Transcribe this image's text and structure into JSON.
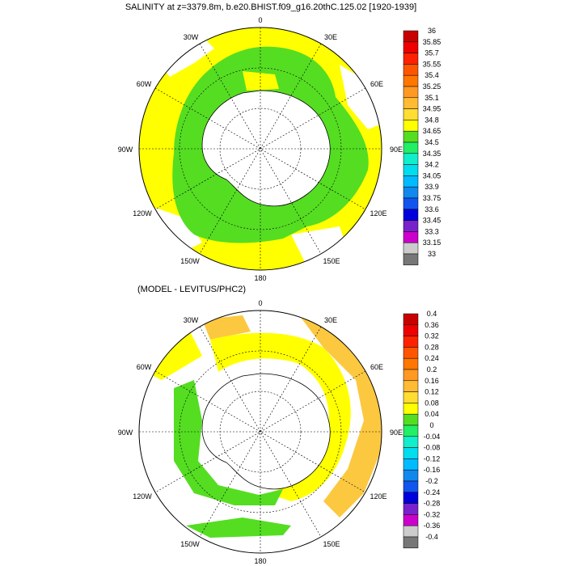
{
  "colors": {
    "green": "#55dd22",
    "yellow": "#ffff00",
    "light_orange": "#fcc840",
    "white": "#ffffff",
    "black": "#000000"
  },
  "panels": [
    {
      "id": "top",
      "title": "SALINITY at z=3379.8m, b.e20.BHIST.f09_g16.20thC.125.02 [1920-1939]",
      "lon_labels": {
        "0": "0",
        "30E": "30E",
        "60E": "60E",
        "90E": "90E",
        "120E": "120E",
        "150E": "150E",
        "180": "180",
        "150W": "150W",
        "120W": "120W",
        "90W": "90W",
        "60W": "60W",
        "30W": "30W"
      },
      "colorbar": {
        "labels": [
          "36",
          "35.85",
          "35.7",
          "35.55",
          "35.4",
          "35.25",
          "35.1",
          "34.95",
          "34.8",
          "34.65",
          "34.5",
          "34.35",
          "34.2",
          "34.05",
          "33.9",
          "33.75",
          "33.6",
          "33.45",
          "33.3",
          "33.15",
          "33"
        ],
        "colors": [
          "#c80000",
          "#ee0000",
          "#ff2200",
          "#ff5500",
          "#ff7700",
          "#ff9922",
          "#ffbb33",
          "#ffdd33",
          "#ffff00",
          "#55dd22",
          "#22ee66",
          "#11eecc",
          "#00ddee",
          "#00bbff",
          "#1188ee",
          "#1155ee",
          "#0000dd",
          "#7722cc",
          "#cc00cc",
          "#cccccc"
        ]
      }
    },
    {
      "id": "bottom",
      "title": "(MODEL - LEVITUS/PHC2)",
      "lon_labels": {
        "0": "0",
        "30E": "30E",
        "60E": "60E",
        "90E": "90E",
        "120E": "120E",
        "150E": "150E",
        "180": "180",
        "150W": "150W",
        "120W": "120W",
        "90W": "90W",
        "60W": "60W",
        "30W": "30W"
      },
      "colorbar": {
        "labels": [
          "0.4",
          "0.36",
          "0.32",
          "0.28",
          "0.24",
          "0.2",
          "0.16",
          "0.12",
          "0.08",
          "0.04",
          "0",
          "-0.04",
          "-0.08",
          "-0.12",
          "-0.16",
          "-0.2",
          "-0.24",
          "-0.28",
          "-0.32",
          "-0.36",
          "-0.4"
        ],
        "colors": [
          "#c80000",
          "#ee0000",
          "#ff2200",
          "#ff5500",
          "#ff7700",
          "#ff9922",
          "#ffbb33",
          "#ffdd33",
          "#ffff00",
          "#55dd22",
          "#22ee66",
          "#11eecc",
          "#00ddee",
          "#00bbff",
          "#1188ee",
          "#1155ee",
          "#0000dd",
          "#7722cc",
          "#cc00cc",
          "#cccccc"
        ]
      }
    }
  ]
}
